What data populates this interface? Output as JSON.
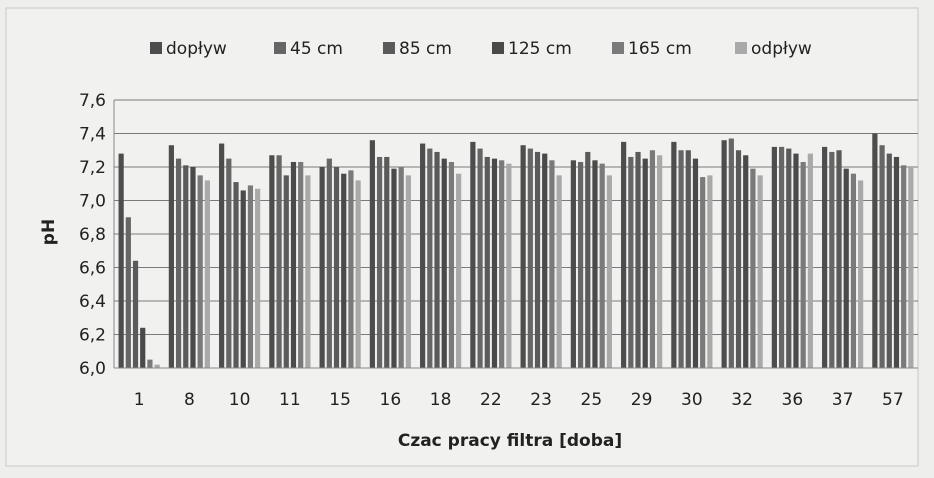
{
  "chart_data": {
    "type": "bar",
    "title": "",
    "xlabel": "Czac pracy filtra [doba]",
    "ylabel": "pH",
    "ylim": [
      6.0,
      7.6
    ],
    "yticks": [
      "6,0",
      "6,2",
      "6,4",
      "6,6",
      "6,8",
      "7,0",
      "7,2",
      "7,4",
      "7,6"
    ],
    "grid": "horizontal",
    "legend_position": "top",
    "categories": [
      "1",
      "8",
      "10",
      "11",
      "15",
      "16",
      "18",
      "22",
      "23",
      "25",
      "29",
      "30",
      "32",
      "36",
      "37",
      "57"
    ],
    "series": [
      {
        "name": "dopływ",
        "color": "#4d4d4d",
        "values": [
          7.28,
          7.33,
          7.34,
          7.27,
          7.2,
          7.36,
          7.34,
          7.35,
          7.33,
          7.24,
          7.35,
          7.35,
          7.36,
          7.32,
          7.32,
          7.4
        ]
      },
      {
        "name": "45 cm",
        "color": "#666666",
        "values": [
          6.9,
          7.25,
          7.25,
          7.27,
          7.25,
          7.26,
          7.31,
          7.31,
          7.31,
          7.23,
          7.26,
          7.3,
          7.37,
          7.32,
          7.29,
          7.33
        ]
      },
      {
        "name": "85 cm",
        "color": "#5a5a5a",
        "values": [
          6.64,
          7.21,
          7.11,
          7.15,
          7.2,
          7.26,
          7.29,
          7.26,
          7.29,
          7.29,
          7.29,
          7.3,
          7.3,
          7.31,
          7.3,
          7.28
        ]
      },
      {
        "name": "125 cm",
        "color": "#4a4a4a",
        "values": [
          6.24,
          7.2,
          7.06,
          7.23,
          7.16,
          7.19,
          7.25,
          7.25,
          7.28,
          7.24,
          7.25,
          7.25,
          7.27,
          7.28,
          7.19,
          7.26
        ]
      },
      {
        "name": "165 cm",
        "color": "#7a7a7a",
        "values": [
          6.05,
          7.15,
          7.09,
          7.23,
          7.18,
          7.2,
          7.23,
          7.24,
          7.24,
          7.22,
          7.3,
          7.14,
          7.19,
          7.23,
          7.16,
          7.21
        ]
      },
      {
        "name": "odpływ",
        "color": "#a9a9a9",
        "values": [
          6.02,
          7.12,
          7.07,
          7.15,
          7.12,
          7.15,
          7.16,
          7.22,
          7.15,
          7.15,
          7.27,
          7.15,
          7.15,
          7.28,
          7.12,
          7.2
        ]
      }
    ]
  },
  "colors": {
    "background": "#eeeeec",
    "plot_area": "#f3f3f1",
    "grid": "#7a7a7a",
    "frame": "#c8c8c8"
  }
}
